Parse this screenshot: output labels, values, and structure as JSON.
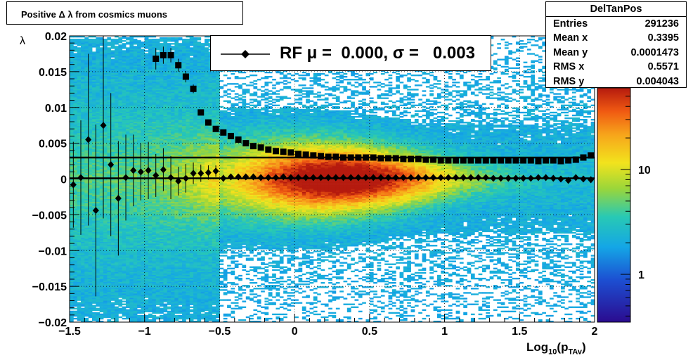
{
  "title": "Positive Δ λ from cosmics muons",
  "stats": {
    "name": "DelTanPos",
    "rows": [
      {
        "label": "Entries",
        "value": "291236"
      },
      {
        "label": "Mean x",
        "value": "0.3395"
      },
      {
        "label": "Mean y",
        "value": "0.0001473"
      },
      {
        "label": "RMS x",
        "value": "0.5571"
      },
      {
        "label": "RMS y",
        "value": "0.004043"
      }
    ]
  },
  "legend": {
    "entry": "RF μ =  0.000, σ =   0.003"
  },
  "chart_data": {
    "type": "heatmap",
    "title": "Positive Δ λ from cosmics muons",
    "xlabel_main": "Log",
    "xlabel_sub1": "10",
    "xlabel_mid": "(p",
    "xlabel_sub2": "TAv",
    "xlabel_end": ")",
    "ylabel": "λ",
    "xlim": [
      -1.5,
      2
    ],
    "ylim": [
      -0.02,
      0.02
    ],
    "x_ticks": [
      "−1.5",
      "−1",
      "−0.5",
      "0",
      "0.5",
      "1",
      "1.5",
      "2"
    ],
    "x_tick_values": [
      -1.5,
      -1,
      -0.5,
      0,
      0.5,
      1,
      1.5,
      2
    ],
    "y_ticks": [
      "0.02",
      "0.015",
      "0.01",
      "0.005",
      "0",
      "−0.005",
      "−0.01",
      "−0.015",
      "−0.02"
    ],
    "y_tick_values": [
      0.02,
      0.015,
      0.01,
      0.005,
      0,
      -0.005,
      -0.01,
      -0.015,
      -0.02
    ],
    "grid": true,
    "log_z": true,
    "z_ticks": [
      "10",
      "1"
    ],
    "z_tick_values": [
      10,
      1
    ],
    "zlim": [
      0.35,
      60
    ],
    "fit_level_lines": [
      0.003,
      0.0001
    ],
    "mean_series": {
      "marker": "diamond",
      "x": [
        -1.475,
        -1.425,
        -1.375,
        -1.325,
        -1.275,
        -1.225,
        -1.175,
        -1.125,
        -1.075,
        -1.025,
        -0.975,
        -0.925,
        -0.875,
        -0.825,
        -0.775,
        -0.725,
        -0.675,
        -0.625,
        -0.575,
        -0.525,
        -0.475,
        -0.425,
        -0.375,
        -0.325,
        -0.275,
        -0.225,
        -0.175,
        -0.125,
        -0.075,
        -0.025,
        0.025,
        0.075,
        0.125,
        0.175,
        0.225,
        0.275,
        0.325,
        0.375,
        0.425,
        0.475,
        0.525,
        0.575,
        0.625,
        0.675,
        0.725,
        0.775,
        0.825,
        0.875,
        0.925,
        0.975,
        1.025,
        1.075,
        1.125,
        1.175,
        1.225,
        1.275,
        1.325,
        1.375,
        1.425,
        1.475,
        1.525,
        1.575,
        1.625,
        1.675,
        1.725,
        1.775,
        1.825,
        1.875,
        1.925,
        1.975
      ],
      "y": [
        -0.0008,
        0.0002,
        0.0055,
        -0.0044,
        0.0075,
        0.002,
        -0.0027,
        0.0002,
        0.0012,
        0.001,
        0.0012,
        0.0005,
        0.0013,
        0.0002,
        -0.0003,
        0.0001,
        0.0008,
        0.0008,
        0.0009,
        0.0011,
        0.0001,
        0.0003,
        0.0003,
        0.0003,
        0.0003,
        0.0002,
        0.0002,
        0.0002,
        0.0003,
        0.0002,
        0.0002,
        0.0002,
        0.0002,
        0.0002,
        0.0002,
        0.0002,
        0.0002,
        0.0002,
        0.0002,
        0.0002,
        0.0002,
        0.0002,
        0.0002,
        0.0002,
        0.0002,
        0.0002,
        0.0002,
        0.0002,
        0.0002,
        0.0002,
        0.0002,
        0.0002,
        0.0002,
        0.0002,
        0.0002,
        0.0002,
        0.0001,
        0.0001,
        0.0001,
        0.0001,
        0.0001,
        0.0001,
        0.0002,
        0.0002,
        0.0001,
        0.0,
        -0.0002,
        0.0002,
        0.0,
        -0.0001
      ],
      "err": [
        0.006,
        0.008,
        0.012,
        0.012,
        0.013,
        0.01,
        0.008,
        0.006,
        0.005,
        0.004,
        0.004,
        0.003,
        0.003,
        0.003,
        0.002,
        0.002,
        0.0015,
        0.0012,
        0.001,
        0.0008,
        0.0005,
        0.0003,
        0.0002,
        0.0002,
        0.0002,
        0.0002,
        0.0002,
        0.0001,
        0.0001,
        0.0001,
        0.0001,
        0.0001,
        0.0001,
        0.0001,
        0.0001,
        0.0001,
        0.0001,
        0.0001,
        0.0001,
        0.0001,
        0.0001,
        0.0001,
        0.0001,
        0.0001,
        0.0001,
        0.0001,
        0.0001,
        0.0001,
        0.0001,
        0.0001,
        0.0001,
        0.0001,
        0.0001,
        0.0001,
        0.0001,
        0.0001,
        0.0001,
        0.0001,
        0.0001,
        0.0001,
        0.0001,
        0.0001,
        0.0001,
        0.0001,
        0.0001,
        0.0001,
        0.0001,
        0.0001,
        0.0001,
        0.0001
      ]
    },
    "sigma_series": {
      "marker": "square",
      "x": [
        -0.925,
        -0.875,
        -0.825,
        -0.775,
        -0.725,
        -0.675,
        -0.625,
        -0.575,
        -0.525,
        -0.475,
        -0.425,
        -0.375,
        -0.325,
        -0.275,
        -0.225,
        -0.175,
        -0.125,
        -0.075,
        -0.025,
        0.025,
        0.075,
        0.125,
        0.175,
        0.225,
        0.275,
        0.325,
        0.375,
        0.425,
        0.475,
        0.525,
        0.575,
        0.625,
        0.675,
        0.725,
        0.775,
        0.825,
        0.875,
        0.925,
        0.975,
        1.025,
        1.075,
        1.125,
        1.175,
        1.225,
        1.275,
        1.325,
        1.375,
        1.425,
        1.475,
        1.525,
        1.575,
        1.625,
        1.675,
        1.725,
        1.775,
        1.825,
        1.875,
        1.925,
        1.975
      ],
      "y": [
        0.0168,
        0.0173,
        0.0173,
        0.0159,
        0.0143,
        0.0126,
        0.0093,
        0.0079,
        0.007,
        0.0065,
        0.006,
        0.0055,
        0.005,
        0.0046,
        0.0044,
        0.0041,
        0.0039,
        0.0038,
        0.0037,
        0.0035,
        0.0034,
        0.0033,
        0.0032,
        0.0031,
        0.0031,
        0.003,
        0.003,
        0.003,
        0.003,
        0.003,
        0.0029,
        0.0029,
        0.0029,
        0.0028,
        0.0028,
        0.0028,
        0.0027,
        0.0027,
        0.0026,
        0.0026,
        0.0026,
        0.0026,
        0.0026,
        0.0026,
        0.0026,
        0.0026,
        0.0026,
        0.0026,
        0.0026,
        0.0026,
        0.0026,
        0.0025,
        0.0026,
        0.0026,
        0.0025,
        0.0026,
        0.0027,
        0.003,
        0.0033
      ],
      "err": [
        0.0015,
        0.0012,
        0.001,
        0.0009,
        0.0008,
        0.0006,
        0.0004,
        0.0003,
        0.0002,
        0.0002,
        0.0002,
        0.0001,
        0.0001,
        0.0001,
        0.0001,
        0.0001,
        0.0001,
        0.0001,
        0.0001,
        0.0001,
        0.0001,
        0.0001,
        0.0001,
        0.0001,
        0.0001,
        0.0001,
        0.0001,
        0.0001,
        0.0001,
        0.0001,
        0.0001,
        0.0001,
        0.0001,
        0.0001,
        0.0001,
        0.0001,
        0.0001,
        0.0001,
        0.0001,
        0.0001,
        0.0001,
        0.0001,
        0.0001,
        0.0001,
        0.0001,
        0.0001,
        0.0001,
        0.0001,
        0.0001,
        0.0001,
        0.0001,
        0.0001,
        0.0001,
        0.0001,
        0.0001,
        0.0001,
        0.0001,
        0.0002,
        0.0002
      ]
    }
  }
}
